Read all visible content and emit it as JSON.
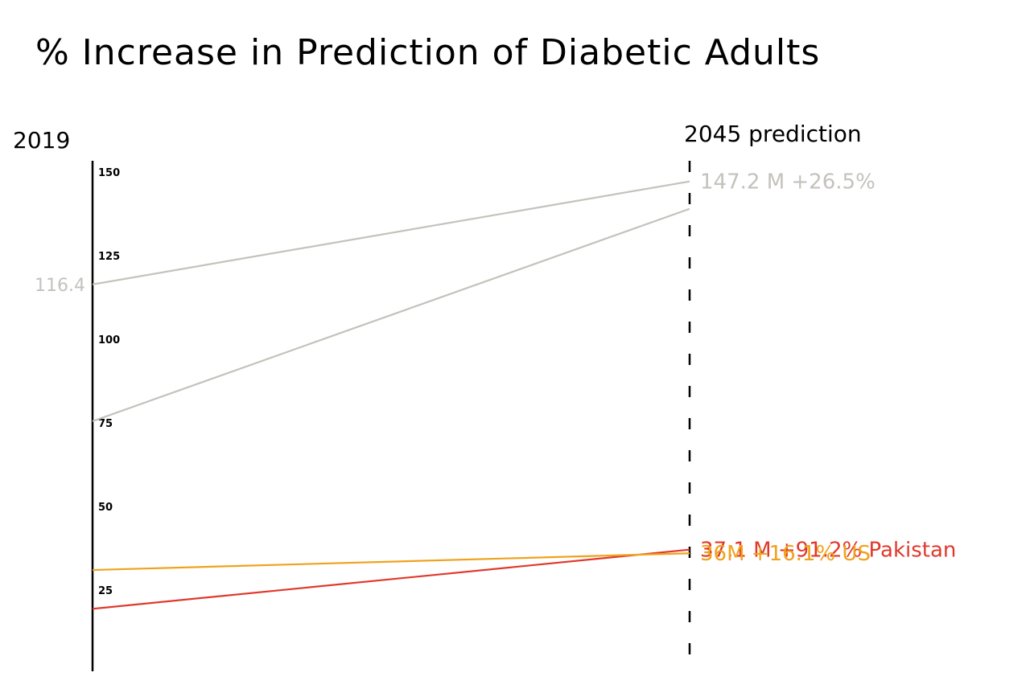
{
  "chart_data": {
    "type": "line",
    "title": "% Increase in Prediction of Diabetic Adults",
    "x": [
      "2019",
      "2045 prediction"
    ],
    "ylim": [
      0,
      150
    ],
    "yticks": [
      150,
      125,
      100,
      75,
      50,
      25
    ],
    "grid": false,
    "legend": "none",
    "series": [
      {
        "values": [
          116.4,
          147.2
        ],
        "color": "#c4c2bc",
        "start_label": "116.4",
        "end_label": "147.2 M  +26.5%"
      },
      {
        "values": [
          75.5,
          139
        ],
        "color": "#c4c2bc",
        "start_label": "",
        "end_label": ""
      },
      {
        "values": [
          19.4,
          37.1
        ],
        "color": "#e0392b",
        "start_label": "",
        "end_label": "37.1 M +91.2% Pakistan"
      },
      {
        "values": [
          31,
          36
        ],
        "color": "#f0a21c",
        "start_label": "",
        "end_label": "36M   +16.1% US"
      }
    ]
  }
}
